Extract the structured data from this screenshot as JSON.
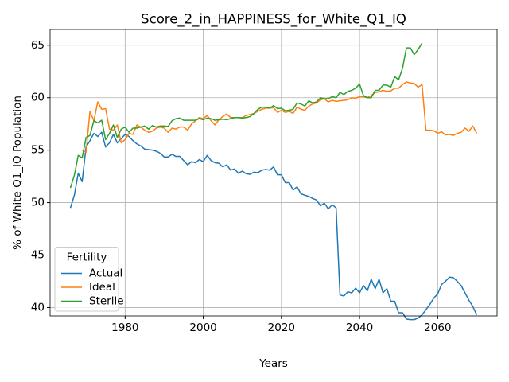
{
  "chart_data": {
    "type": "line",
    "title": "Score_2_in_HAPPINESS_for_White_Q1_IQ",
    "xlabel": "Years",
    "ylabel": "% of White Q1_IQ Population",
    "legend_title": "Fertility",
    "legend_loc": "lower left",
    "grid": true,
    "xlim": [
      1960.8,
      2075.2
    ],
    "ylim": [
      39.2,
      66.5
    ],
    "xticks": [
      1980,
      2000,
      2020,
      2040,
      2060
    ],
    "yticks": [
      40,
      45,
      50,
      55,
      60,
      65
    ],
    "x": [
      1966,
      1967,
      1968,
      1969,
      1970,
      1971,
      1972,
      1973,
      1974,
      1975,
      1976,
      1977,
      1978,
      1979,
      1980,
      1981,
      1982,
      1983,
      1984,
      1985,
      1986,
      1987,
      1988,
      1989,
      1990,
      1991,
      1992,
      1993,
      1994,
      1995,
      1996,
      1997,
      1998,
      1999,
      2000,
      2001,
      2002,
      2003,
      2004,
      2005,
      2006,
      2007,
      2008,
      2009,
      2010,
      2011,
      2012,
      2013,
      2014,
      2015,
      2016,
      2017,
      2018,
      2019,
      2020,
      2021,
      2022,
      2023,
      2024,
      2025,
      2026,
      2027,
      2028,
      2029,
      2030,
      2031,
      2032,
      2033,
      2034,
      2035,
      2036,
      2037,
      2038,
      2039,
      2040,
      2041,
      2042,
      2043,
      2044,
      2045,
      2046,
      2047,
      2048,
      2049,
      2050,
      2051,
      2052,
      2053,
      2054,
      2055,
      2056,
      2057,
      2058,
      2059,
      2060,
      2061,
      2062,
      2063,
      2064,
      2065,
      2066,
      2067,
      2068,
      2069,
      2070
    ],
    "series": [
      {
        "name": "Actual",
        "color": "#1f77b4",
        "values": [
          49.5,
          50.7,
          52.8,
          52.0,
          55.3,
          55.9,
          56.6,
          56.3,
          56.7,
          55.3,
          55.7,
          56.5,
          55.7,
          56.1,
          56.5,
          56.3,
          55.9,
          55.6,
          55.4,
          55.1,
          55.05,
          55.0,
          54.9,
          54.7,
          54.35,
          54.35,
          54.6,
          54.4,
          54.4,
          54.0,
          53.6,
          53.9,
          53.8,
          54.1,
          53.9,
          54.5,
          54.0,
          53.8,
          53.75,
          53.4,
          53.6,
          53.1,
          53.2,
          52.8,
          53.0,
          52.75,
          52.7,
          52.9,
          52.85,
          53.1,
          53.15,
          53.1,
          53.4,
          52.65,
          52.65,
          51.9,
          51.9,
          51.2,
          51.5,
          50.85,
          50.7,
          50.6,
          50.4,
          50.25,
          49.7,
          49.95,
          49.4,
          49.8,
          49.5,
          41.2,
          41.1,
          41.5,
          41.4,
          41.85,
          41.4,
          42.1,
          41.6,
          42.7,
          41.8,
          42.7,
          41.4,
          41.8,
          40.6,
          40.6,
          39.5,
          39.5,
          38.9,
          38.85,
          38.85,
          39.0,
          39.3,
          39.8,
          40.3,
          40.9,
          41.3,
          42.2,
          42.5,
          42.9,
          42.85,
          42.5,
          42.1,
          41.4,
          40.7,
          40.1,
          39.3
        ]
      },
      {
        "name": "Ideal",
        "color": "#ff7f0e",
        "values": [
          null,
          null,
          null,
          55.0,
          54.8,
          58.7,
          57.8,
          59.6,
          58.9,
          58.95,
          57.0,
          56.9,
          57.4,
          55.7,
          56.0,
          56.6,
          56.5,
          57.4,
          57.2,
          56.9,
          56.7,
          56.8,
          57.1,
          57.2,
          57.1,
          56.7,
          57.1,
          57.0,
          57.2,
          57.2,
          56.9,
          57.5,
          57.8,
          58.1,
          58.0,
          58.3,
          57.8,
          57.4,
          57.9,
          58.2,
          58.45,
          58.1,
          58.1,
          58.1,
          58.1,
          58.3,
          58.4,
          58.5,
          58.7,
          58.9,
          59.0,
          59.0,
          59.05,
          58.6,
          58.8,
          58.6,
          58.7,
          58.5,
          59.1,
          58.9,
          58.8,
          59.2,
          59.4,
          59.5,
          59.8,
          59.9,
          59.6,
          59.75,
          59.65,
          59.7,
          59.75,
          59.8,
          60.0,
          59.95,
          60.1,
          60.1,
          60.0,
          60.2,
          60.5,
          60.55,
          60.7,
          60.6,
          60.65,
          60.9,
          60.9,
          61.25,
          61.5,
          61.4,
          61.35,
          61.0,
          61.25,
          56.9,
          56.9,
          56.85,
          56.6,
          56.75,
          56.45,
          56.5,
          56.4,
          56.6,
          56.7,
          57.1,
          56.8,
          57.3,
          56.6
        ]
      },
      {
        "name": "Sterile",
        "color": "#2ca02c",
        "values": [
          51.4,
          52.6,
          54.5,
          54.25,
          56.2,
          56.4,
          57.8,
          57.6,
          57.85,
          56.0,
          56.6,
          57.4,
          56.2,
          57.0,
          57.2,
          56.7,
          57.1,
          57.1,
          57.2,
          57.3,
          57.0,
          57.35,
          57.2,
          57.3,
          57.3,
          57.25,
          57.8,
          58.0,
          58.05,
          57.85,
          57.85,
          57.85,
          57.85,
          58.0,
          57.9,
          58.05,
          58.0,
          57.85,
          57.9,
          57.95,
          57.9,
          58.0,
          58.1,
          58.1,
          58.05,
          58.1,
          58.2,
          58.5,
          58.9,
          59.1,
          59.1,
          59.0,
          59.25,
          58.95,
          59.0,
          58.75,
          58.8,
          58.9,
          59.5,
          59.4,
          59.2,
          59.7,
          59.5,
          59.6,
          60.0,
          59.9,
          59.9,
          60.1,
          60.0,
          60.5,
          60.3,
          60.6,
          60.7,
          60.9,
          61.3,
          60.2,
          60.0,
          60.0,
          60.7,
          60.7,
          61.2,
          61.2,
          61.0,
          62.0,
          61.7,
          62.8,
          64.75,
          64.75,
          64.1,
          64.6,
          65.2,
          null,
          null,
          null,
          null,
          null,
          null,
          null,
          null,
          null,
          null,
          null,
          null,
          null,
          null
        ]
      }
    ]
  }
}
